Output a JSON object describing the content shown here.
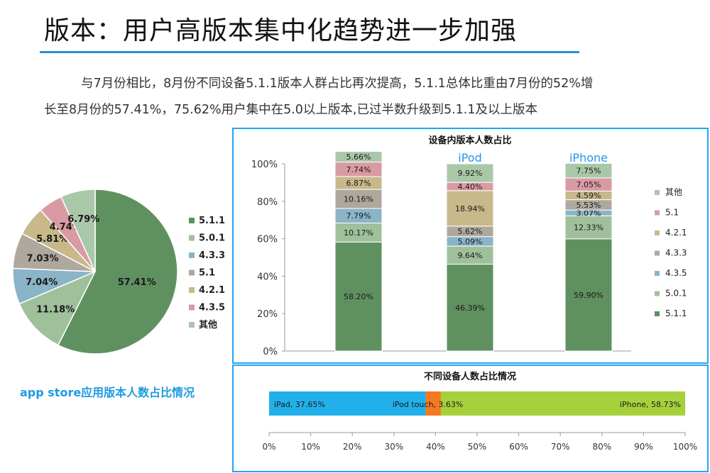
{
  "slide": {
    "title": "版本：用户高版本集中化趋势进一步加强",
    "paragraph_line1": "与7月份相比，8月份不同设备5.1.1版本人群占比再次提高，5.1.1总体比重由7月份的52%增",
    "paragraph_line2": "长至8月份的57.41%，75.62%用户集中在5.0以上版本,已过半数升级到5.1.1及以上版本",
    "pie_caption": "app store应用版本人数占比情况"
  },
  "chart_data": [
    {
      "type": "pie",
      "title": "",
      "slices": [
        {
          "name": "5.1.1",
          "value": 57.41,
          "label": "57.41%",
          "color": "#5f9160"
        },
        {
          "name": "5.0.1",
          "value": 11.18,
          "label": "11.18%",
          "color": "#9fc09b"
        },
        {
          "name": "4.3.3",
          "value": 7.04,
          "label": "7.04%",
          "color": "#8ab4c8"
        },
        {
          "name": "5.1",
          "value": 7.03,
          "label": "7.03%",
          "color": "#aea89d"
        },
        {
          "name": "4.2.1",
          "value": 5.81,
          "label": "5.81%",
          "color": "#c8b88a"
        },
        {
          "name": "4.3.5",
          "value": 4.74,
          "label": "4.74%",
          "color": "#d99ba3"
        },
        {
          "name": "其他",
          "value": 6.79,
          "label": "6.79%",
          "color": "#a9c8a8"
        }
      ],
      "legend": [
        "5.1.1",
        "5.0.1",
        "4.3.3",
        "5.1",
        "4.2.1",
        "4.3.5",
        "其他"
      ],
      "legend_position": "right"
    },
    {
      "type": "bar",
      "stacked": true,
      "title": "设备内版本人数占比",
      "categories": [
        "iPad",
        "iPod",
        "iPhone"
      ],
      "y_ticks": [
        "0%",
        "20%",
        "40%",
        "60%",
        "80%",
        "100%"
      ],
      "ylim": [
        0,
        100
      ],
      "grid": false,
      "legend_position": "right",
      "series": [
        {
          "name": "5.1.1",
          "color": "#5f9160",
          "values": [
            58.2,
            46.39,
            59.9
          ],
          "labels": [
            "58.20%",
            "46.39%",
            "59.90%"
          ]
        },
        {
          "name": "5.0.1",
          "color": "#9fc09b",
          "values": [
            10.17,
            9.64,
            12.33
          ],
          "labels": [
            "10.17%",
            "9.64%",
            "12.33%"
          ]
        },
        {
          "name": "4.3.5",
          "color": "#8ab4c8",
          "values": [
            7.79,
            5.09,
            3.07
          ],
          "labels": [
            "7.79%",
            "5.09%",
            "3.07%"
          ]
        },
        {
          "name": "4.3.3",
          "color": "#aea89d",
          "values": [
            10.16,
            5.62,
            5.53
          ],
          "labels": [
            "10.16%",
            "5.62%",
            "5.53%"
          ]
        },
        {
          "name": "4.2.1",
          "color": "#c8b88a",
          "values": [
            6.87,
            18.94,
            4.59
          ],
          "labels": [
            "6.87%",
            "18.94%",
            "4.59%"
          ]
        },
        {
          "name": "5.1",
          "color": "#d99ba3",
          "values": [
            7.74,
            4.4,
            7.05
          ],
          "labels": [
            "7.74%",
            "4.40%",
            "7.05%"
          ]
        },
        {
          "name": "其他",
          "color": "#a9c8a8",
          "values": [
            5.66,
            9.92,
            7.75
          ],
          "labels": [
            "5.66%",
            "9.92%",
            "7.75%"
          ]
        }
      ],
      "legend_order": [
        "其他",
        "5.1",
        "4.2.1",
        "4.3.3",
        "4.3.5",
        "5.0.1",
        "5.1.1"
      ]
    },
    {
      "type": "bar",
      "orientation": "horizontal",
      "stacked": true,
      "title": "不同设备人数占比情况",
      "x_ticks": [
        "0%",
        "10%",
        "20%",
        "30%",
        "40%",
        "50%",
        "60%",
        "70%",
        "80%",
        "90%",
        "100%"
      ],
      "xlim": [
        0,
        100
      ],
      "segments": [
        {
          "name": "iPad",
          "value": 37.65,
          "label": "iPad, 37.65%",
          "color": "#21b0ea"
        },
        {
          "name": "iPod touch",
          "value": 3.63,
          "label": "iPod touch, 3.63%",
          "color": "#f47921"
        },
        {
          "name": "iPhone",
          "value": 58.73,
          "label": "iPhone, 58.73%",
          "color": "#a6d13b"
        }
      ]
    }
  ]
}
